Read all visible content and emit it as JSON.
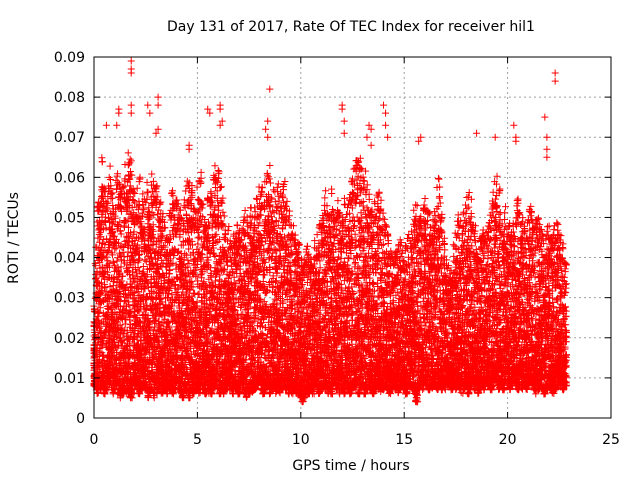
{
  "chart_data": {
    "type": "scatter",
    "title": "Day 131 of 2017, Rate Of TEC Index for receiver hil1",
    "xlabel": "GPS time / hours",
    "ylabel": "ROTI / TECUs",
    "xlim": [
      0,
      25
    ],
    "ylim": [
      0,
      0.09
    ],
    "xticks": [
      0,
      5,
      10,
      15,
      20,
      25
    ],
    "yticks": [
      0,
      0.01,
      0.02,
      0.03,
      0.04,
      0.05,
      0.06,
      0.07,
      0.08,
      0.09
    ],
    "xtick_labels": [
      "0",
      "5",
      "10",
      "15",
      "20",
      "25"
    ],
    "ytick_labels": [
      "0",
      "0.01",
      "0.02",
      "0.03",
      "0.04",
      "0.05",
      "0.06",
      "0.07",
      "0.08",
      "0.09"
    ],
    "grid": true,
    "legend": "none",
    "marker": "plus",
    "color": "#ff0000",
    "series": [
      {
        "x": [
          0.0,
          0.1,
          0.2,
          0.3,
          0.4,
          0.5,
          0.6,
          0.7,
          0.8,
          0.9,
          1.0,
          1.1,
          1.2,
          1.3,
          1.4,
          1.5,
          1.6,
          1.7,
          1.8,
          1.9,
          2.0,
          2.1,
          2.2,
          2.3,
          2.4,
          2.5,
          2.6,
          2.7,
          2.8,
          2.9,
          3.0,
          3.1,
          3.2,
          3.3,
          3.4,
          3.5,
          3.6,
          3.7,
          3.8,
          3.9,
          4.0,
          4.1,
          4.2,
          4.3,
          4.4,
          4.5,
          4.6,
          4.7,
          4.8,
          4.9,
          5.0,
          5.1,
          5.2,
          5.3,
          5.4,
          5.5,
          5.6,
          5.7,
          5.8,
          5.9,
          6.0,
          6.1,
          6.2,
          6.3,
          6.4,
          6.5,
          6.6,
          6.7,
          6.8,
          6.9,
          7.0,
          7.1,
          7.2,
          7.3,
          7.4,
          7.5,
          7.6,
          7.7,
          7.8,
          7.9,
          8.0,
          8.1,
          8.2,
          8.3,
          8.4,
          8.5,
          8.6,
          8.7,
          8.8,
          8.9,
          9.0,
          9.1,
          9.2,
          9.3,
          9.4,
          9.5,
          9.6,
          9.7,
          9.8,
          9.9,
          10.0,
          10.1,
          10.2,
          10.3,
          10.4,
          10.5,
          10.6,
          10.7,
          10.8,
          10.9,
          11.0,
          11.1,
          11.2,
          11.3,
          11.4,
          11.5,
          11.6,
          11.7,
          11.8,
          11.9,
          12.0,
          12.1,
          12.2,
          12.3,
          12.4,
          12.5,
          12.6,
          12.7,
          12.8,
          12.9,
          13.0,
          13.1,
          13.2,
          13.3,
          13.4,
          13.5,
          13.6,
          13.7,
          13.8,
          13.9,
          14.0,
          14.1,
          14.2,
          14.3,
          14.4,
          14.5,
          14.6,
          14.7,
          14.8,
          14.9,
          15.0,
          15.1,
          15.2,
          15.3,
          15.4,
          15.5,
          15.6,
          15.7,
          15.8,
          15.9,
          16.0,
          16.1,
          16.2,
          16.3,
          16.4,
          16.5,
          16.6,
          16.7,
          16.8,
          16.9,
          17.0,
          17.1,
          17.2,
          17.3,
          17.4,
          17.5,
          17.6,
          17.7,
          17.8,
          17.9,
          18.0,
          18.1,
          18.2,
          18.3,
          18.4,
          18.5,
          18.6,
          18.7,
          18.8,
          18.9,
          19.0,
          19.1,
          19.2,
          19.3,
          19.4,
          19.5,
          19.6,
          19.7,
          19.8,
          19.9,
          20.0,
          20.1,
          20.2,
          20.3,
          20.4,
          20.5,
          20.6,
          20.7,
          20.8,
          20.9,
          21.0,
          21.1,
          21.2,
          21.3,
          21.4,
          21.5,
          21.6,
          21.7,
          21.8,
          21.9,
          22.0,
          22.1,
          22.2,
          22.3,
          22.4,
          22.5,
          22.6,
          22.7,
          22.8,
          22.9,
          23.0,
          23.1,
          23.2,
          23.3,
          23.4,
          23.5,
          23.6,
          23.7,
          23.8
        ],
        "y_min": [
          0.008,
          0.007,
          0.006,
          0.007,
          0.008,
          0.006,
          0.007,
          0.009,
          0.007,
          0.006,
          0.007,
          0.008,
          0.006,
          0.005,
          0.006,
          0.007,
          0.005,
          0.006,
          0.005,
          0.007,
          0.008,
          0.006,
          0.006,
          0.007,
          0.008,
          0.007,
          0.005,
          0.006,
          0.007,
          0.005,
          0.006,
          0.007,
          0.008,
          0.006,
          0.007,
          0.006,
          0.008,
          0.007,
          0.006,
          0.007,
          0.008,
          0.007,
          0.006,
          0.005,
          0.007,
          0.006,
          0.005,
          0.007,
          0.006,
          0.008,
          0.007,
          0.006,
          0.008,
          0.007,
          0.006,
          0.007,
          0.006,
          0.006,
          0.007,
          0.008,
          0.007,
          0.006,
          0.007,
          0.006,
          0.007,
          0.008,
          0.007,
          0.006,
          0.008,
          0.007,
          0.006,
          0.008,
          0.007,
          0.006,
          0.005,
          0.006,
          0.007,
          0.006,
          0.007,
          0.008,
          0.009,
          0.007,
          0.006,
          0.007,
          0.008,
          0.006,
          0.007,
          0.008,
          0.006,
          0.007,
          0.006,
          0.007,
          0.008,
          0.007,
          0.006,
          0.007,
          0.006,
          0.007,
          0.006,
          0.007,
          0.005,
          0.004,
          0.005,
          0.006,
          0.006,
          0.007,
          0.006,
          0.008,
          0.007,
          0.006,
          0.007,
          0.008,
          0.007,
          0.006,
          0.007,
          0.006,
          0.008,
          0.007,
          0.008,
          0.006,
          0.007,
          0.006,
          0.008,
          0.007,
          0.006,
          0.007,
          0.008,
          0.007,
          0.006,
          0.007,
          0.008,
          0.006,
          0.007,
          0.008,
          0.007,
          0.006,
          0.007,
          0.008,
          0.007,
          0.006,
          0.007,
          0.008,
          0.007,
          0.006,
          0.007,
          0.008,
          0.007,
          0.006,
          0.007,
          0.008,
          0.007,
          0.006,
          0.007,
          0.008,
          0.007,
          0.006,
          0.004,
          0.007,
          0.008,
          0.007,
          0.009,
          0.008,
          0.007,
          0.008,
          0.007,
          0.008,
          0.007,
          0.008,
          0.007,
          0.008,
          0.007,
          0.008,
          0.009,
          0.007,
          0.008,
          0.007,
          0.008,
          0.007,
          0.006,
          0.007,
          0.008,
          0.006,
          0.007,
          0.008,
          0.007,
          0.008,
          0.006,
          0.007,
          0.008,
          0.007,
          0.009,
          0.008,
          0.007,
          0.008,
          0.009,
          0.008,
          0.007,
          0.008,
          0.007,
          0.009,
          0.008,
          0.007,
          0.008,
          0.009,
          0.008,
          0.007,
          0.008,
          0.007,
          0.008,
          0.007,
          0.008,
          0.009,
          0.008,
          0.007,
          0.006,
          0.007,
          0.008,
          0.007,
          0.006,
          0.007,
          0.008,
          0.007,
          0.006,
          0.007,
          0.008,
          0.009,
          0.008,
          0.007,
          0.008,
          0.007,
          0.008,
          0.007,
          0.005,
          0.006,
          0.007
        ],
        "y_max": [
          0.028,
          0.043,
          0.054,
          0.057,
          0.065,
          0.058,
          0.054,
          0.061,
          0.063,
          0.057,
          0.055,
          0.061,
          0.06,
          0.058,
          0.059,
          0.064,
          0.061,
          0.067,
          0.065,
          0.062,
          0.057,
          0.059,
          0.061,
          0.055,
          0.058,
          0.054,
          0.06,
          0.052,
          0.063,
          0.061,
          0.058,
          0.056,
          0.055,
          0.051,
          0.049,
          0.046,
          0.045,
          0.052,
          0.058,
          0.054,
          0.055,
          0.056,
          0.052,
          0.05,
          0.057,
          0.061,
          0.06,
          0.058,
          0.054,
          0.052,
          0.058,
          0.061,
          0.062,
          0.057,
          0.05,
          0.055,
          0.059,
          0.058,
          0.063,
          0.061,
          0.064,
          0.062,
          0.058,
          0.052,
          0.047,
          0.048,
          0.045,
          0.044,
          0.046,
          0.049,
          0.047,
          0.045,
          0.05,
          0.052,
          0.051,
          0.046,
          0.053,
          0.049,
          0.053,
          0.055,
          0.058,
          0.06,
          0.054,
          0.059,
          0.062,
          0.063,
          0.06,
          0.058,
          0.055,
          0.06,
          0.057,
          0.058,
          0.059,
          0.057,
          0.052,
          0.05,
          0.048,
          0.047,
          0.042,
          0.044,
          0.04,
          0.038,
          0.04,
          0.044,
          0.042,
          0.04,
          0.041,
          0.045,
          0.047,
          0.049,
          0.053,
          0.055,
          0.057,
          0.054,
          0.052,
          0.058,
          0.053,
          0.05,
          0.055,
          0.052,
          0.05,
          0.055,
          0.052,
          0.054,
          0.056,
          0.061,
          0.063,
          0.065,
          0.067,
          0.065,
          0.061,
          0.062,
          0.06,
          0.057,
          0.053,
          0.05,
          0.054,
          0.056,
          0.058,
          0.055,
          0.053,
          0.05,
          0.046,
          0.044,
          0.043,
          0.04,
          0.042,
          0.045,
          0.046,
          0.044,
          0.042,
          0.044,
          0.046,
          0.045,
          0.048,
          0.052,
          0.054,
          0.05,
          0.051,
          0.053,
          0.055,
          0.054,
          0.052,
          0.048,
          0.05,
          0.052,
          0.058,
          0.06,
          0.053,
          0.045,
          0.042,
          0.038,
          0.036,
          0.04,
          0.044,
          0.047,
          0.052,
          0.05,
          0.048,
          0.052,
          0.055,
          0.058,
          0.055,
          0.05,
          0.048,
          0.042,
          0.04,
          0.045,
          0.047,
          0.046,
          0.049,
          0.05,
          0.052,
          0.057,
          0.06,
          0.062,
          0.058,
          0.052,
          0.05,
          0.053,
          0.048,
          0.05,
          0.047,
          0.05,
          0.053,
          0.055,
          0.052,
          0.05,
          0.048,
          0.046,
          0.05,
          0.053,
          0.051,
          0.048,
          0.05,
          0.052,
          0.049,
          0.046,
          0.042,
          0.048,
          0.05,
          0.046,
          0.047,
          0.048,
          0.049,
          0.047,
          0.046,
          0.045,
          0.04
        ],
        "outliers": [
          [
            1.8,
            0.089
          ],
          [
            1.8,
            0.087
          ],
          [
            1.8,
            0.086
          ],
          [
            1.8,
            0.078
          ],
          [
            1.8,
            0.076
          ],
          [
            1.2,
            0.077
          ],
          [
            1.2,
            0.076
          ],
          [
            1.1,
            0.073
          ],
          [
            0.6,
            0.073
          ],
          [
            2.6,
            0.078
          ],
          [
            2.7,
            0.076
          ],
          [
            3.1,
            0.08
          ],
          [
            3.1,
            0.078
          ],
          [
            3.1,
            0.072
          ],
          [
            3.0,
            0.071
          ],
          [
            4.6,
            0.068
          ],
          [
            4.6,
            0.067
          ],
          [
            5.5,
            0.077
          ],
          [
            5.6,
            0.076
          ],
          [
            6.1,
            0.078
          ],
          [
            6.1,
            0.077
          ],
          [
            6.2,
            0.074
          ],
          [
            6.1,
            0.073
          ],
          [
            8.5,
            0.082
          ],
          [
            8.4,
            0.074
          ],
          [
            8.3,
            0.072
          ],
          [
            8.4,
            0.07
          ],
          [
            12.0,
            0.078
          ],
          [
            12.0,
            0.077
          ],
          [
            12.1,
            0.074
          ],
          [
            12.1,
            0.071
          ],
          [
            13.3,
            0.073
          ],
          [
            13.4,
            0.072
          ],
          [
            13.2,
            0.07
          ],
          [
            13.4,
            0.068
          ],
          [
            14.0,
            0.078
          ],
          [
            14.1,
            0.076
          ],
          [
            14.1,
            0.073
          ],
          [
            14.2,
            0.07
          ],
          [
            15.8,
            0.07
          ],
          [
            15.7,
            0.069
          ],
          [
            18.5,
            0.071
          ],
          [
            19.4,
            0.07
          ],
          [
            20.3,
            0.073
          ],
          [
            20.4,
            0.07
          ],
          [
            20.4,
            0.069
          ],
          [
            21.8,
            0.075
          ],
          [
            21.9,
            0.07
          ],
          [
            21.9,
            0.067
          ],
          [
            21.9,
            0.065
          ],
          [
            22.3,
            0.086
          ],
          [
            22.3,
            0.084
          ]
        ]
      }
    ]
  }
}
